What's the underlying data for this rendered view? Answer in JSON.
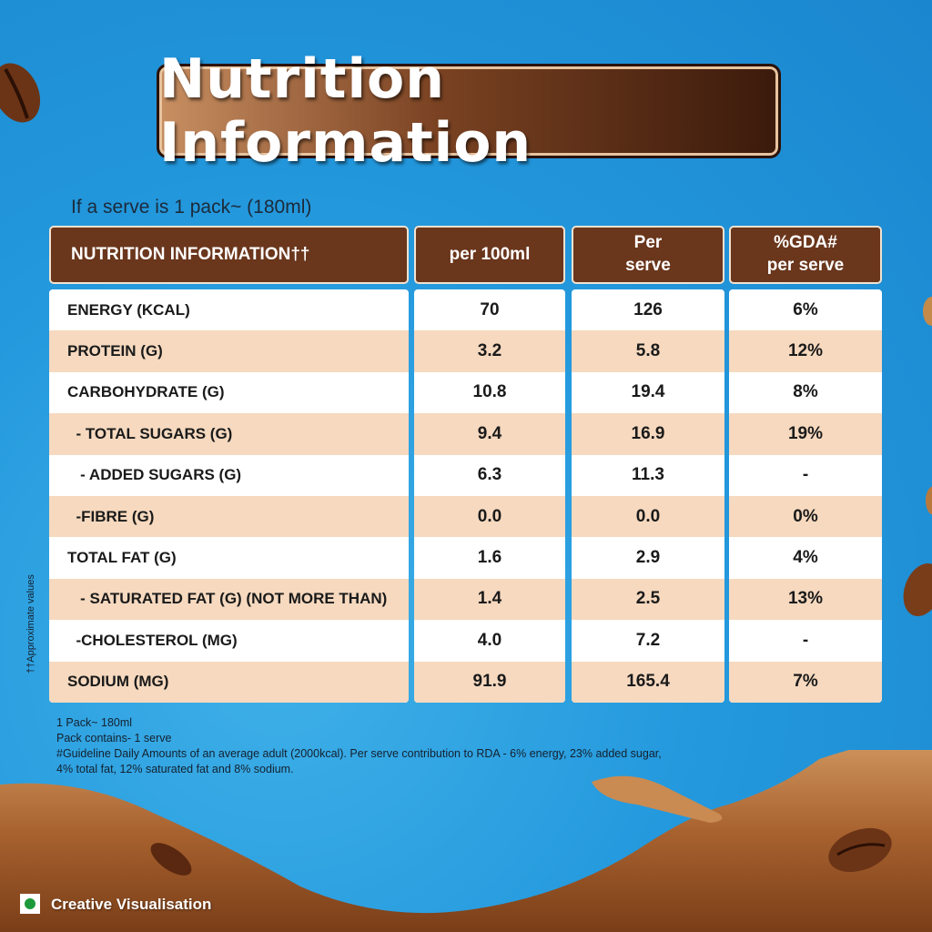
{
  "title": "Nutrition Information",
  "serve_note": "If a serve is 1 pack~ (180ml)",
  "headers": {
    "nutrient": "NUTRITION INFORMATION††",
    "per100": "per 100ml",
    "per_serve": "Per serve",
    "gda": "%GDA# per serve"
  },
  "rows": [
    {
      "name": "ENERGY (KCAL)",
      "per100": "70",
      "serve": "126",
      "gda": "6%"
    },
    {
      "name": "PROTEIN (G)",
      "per100": "3.2",
      "serve": "5.8",
      "gda": "12%"
    },
    {
      "name": "CARBOHYDRATE (G)",
      "per100": "10.8",
      "serve": "19.4",
      "gda": "8%"
    },
    {
      "name": "  - TOTAL SUGARS (G)",
      "per100": "9.4",
      "serve": "16.9",
      "gda": "19%"
    },
    {
      "name": "   - ADDED SUGARS (G)",
      "per100": "6.3",
      "serve": "11.3",
      "gda": "-"
    },
    {
      "name": "  -FIBRE (G)",
      "per100": "0.0",
      "serve": "0.0",
      "gda": "0%"
    },
    {
      "name": "TOTAL FAT (G)",
      "per100": "1.6",
      "serve": "2.9",
      "gda": "4%"
    },
    {
      "name": "   - SATURATED FAT (G) (NOT MORE THAN)",
      "per100": "1.4",
      "serve": "2.5",
      "gda": "13%"
    },
    {
      "name": "  -CHOLESTEROL (MG)",
      "per100": "4.0",
      "serve": "7.2",
      "gda": "-"
    },
    {
      "name": "SODIUM (MG)",
      "per100": "91.9",
      "serve": "165.4",
      "gda": "7%"
    }
  ],
  "footnotes": {
    "line1": "1 Pack~ 180ml",
    "line2": "Pack contains- 1 serve",
    "line3": "#Guideline Daily Amounts of an average adult (2000kcal). Per serve contribution to RDA - 6% energy, 23% added sugar,",
    "line4": "4% total fat, 12% saturated fat and 8% sodium."
  },
  "side_note": "††Approximate values",
  "creative_label": "Creative Visualisation",
  "colors": {
    "header_brown": "#6a361c",
    "row_alt": "#f6d9bf",
    "background_blue": "#2499dd"
  }
}
